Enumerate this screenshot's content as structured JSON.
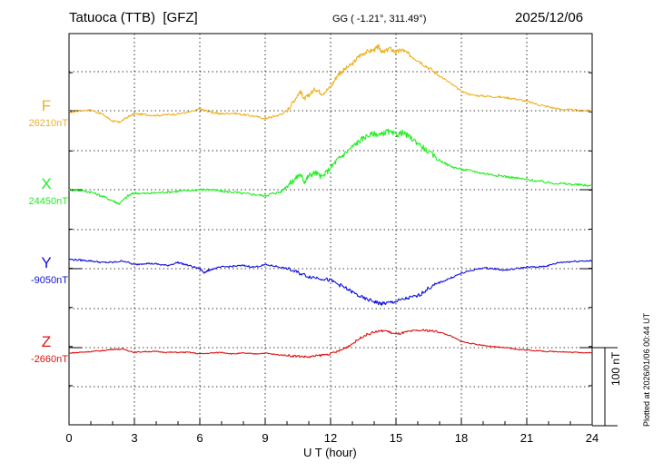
{
  "header": {
    "station": "Tatuoca (TTB)  [GFZ]",
    "coords": "GG ( -1.21°, 311.49°)",
    "date": "2025/12/06"
  },
  "footer": {
    "plotted": "Plotted at 2026/01/06 00:44 UT",
    "scale_label": "100 nT"
  },
  "chart_data": {
    "type": "line",
    "xlabel": "U T (hour)",
    "xlim": [
      0,
      24
    ],
    "xticks": [
      0,
      3,
      6,
      9,
      12,
      15,
      18,
      21,
      24
    ],
    "xtick_labels": [
      "0",
      "3",
      "6",
      "9",
      "12",
      "15",
      "18",
      "21",
      "24"
    ],
    "grid": true,
    "scale_bar_nT": 100,
    "series": [
      {
        "name": "F",
        "baseline": "26210nT",
        "baseline_value": 26210,
        "color": "#f0b020",
        "x": [
          0,
          0.5,
          1,
          1.5,
          2,
          2.3,
          2.7,
          3,
          3.5,
          4,
          4.5,
          5,
          5.5,
          6,
          6.3,
          6.7,
          7,
          7.5,
          8,
          8.5,
          9,
          9.3,
          9.7,
          10,
          10.3,
          10.6,
          10.8,
          11,
          11.3,
          11.6,
          12,
          12.3,
          12.6,
          13,
          13.3,
          13.6,
          14,
          14.2,
          14.4,
          14.7,
          15,
          15.3,
          15.6,
          16,
          16.5,
          17,
          17.5,
          18,
          18.5,
          19,
          19.5,
          20,
          20.5,
          21,
          21.5,
          22,
          22.5,
          23,
          23.5,
          24
        ],
        "values": [
          -2,
          0,
          1,
          -4,
          -13,
          -15,
          -8,
          -4,
          -5,
          -6,
          -5,
          -4,
          -2,
          2,
          0,
          -3,
          -4,
          -3,
          -5,
          -7,
          -10,
          -8,
          -5,
          0,
          12,
          25,
          15,
          20,
          28,
          22,
          30,
          45,
          52,
          60,
          70,
          75,
          78,
          82,
          74,
          80,
          75,
          78,
          72,
          65,
          55,
          45,
          35,
          25,
          20,
          19,
          18,
          17,
          15,
          12,
          8,
          5,
          2,
          1,
          0,
          0
        ]
      },
      {
        "name": "X",
        "baseline": "24450nT",
        "baseline_value": 24450,
        "color": "#22ee22",
        "x": [
          0,
          0.5,
          1,
          1.5,
          2,
          2.3,
          2.7,
          3,
          3.5,
          4,
          4.5,
          5,
          5.5,
          6,
          6.5,
          7,
          7.5,
          8,
          8.5,
          9,
          9.3,
          9.7,
          10,
          10.3,
          10.6,
          10.8,
          11,
          11.3,
          11.6,
          12,
          12.3,
          12.6,
          13,
          13.3,
          13.6,
          14,
          14.3,
          14.6,
          15,
          15.3,
          15.6,
          16,
          16.5,
          17,
          17.5,
          18,
          18.5,
          19,
          19.5,
          20,
          20.5,
          21,
          21.5,
          22,
          22.5,
          23,
          23.5,
          24
        ],
        "values": [
          0,
          -1,
          -3,
          -8,
          -14,
          -18,
          -8,
          -4,
          -5,
          -4,
          -3,
          -2,
          -1,
          0,
          0,
          -2,
          -3,
          -5,
          -6,
          -8,
          -5,
          -3,
          5,
          12,
          20,
          10,
          18,
          22,
          16,
          28,
          38,
          45,
          55,
          62,
          68,
          72,
          70,
          75,
          70,
          73,
          68,
          60,
          48,
          38,
          30,
          26,
          24,
          21,
          19,
          17,
          15,
          13,
          11,
          9,
          8,
          7,
          6,
          5
        ]
      },
      {
        "name": "Y",
        "baseline": "-9050nT",
        "baseline_value": -9050,
        "color": "#1010dd",
        "x": [
          0,
          0.5,
          1,
          1.5,
          2,
          2.5,
          3,
          3.5,
          4,
          4.5,
          5,
          5.5,
          6,
          6.2,
          6.5,
          7,
          7.5,
          8,
          8.5,
          9,
          9.5,
          10,
          10.5,
          11,
          11.5,
          12,
          12.5,
          13,
          13.5,
          14,
          14.3,
          14.6,
          15,
          15.5,
          16,
          16.5,
          17,
          17.5,
          18,
          18.5,
          19,
          19.5,
          20,
          20.5,
          21,
          21.5,
          22,
          22.5,
          23,
          23.5,
          24
        ],
        "values": [
          12,
          11,
          10,
          8,
          8,
          10,
          5,
          7,
          6,
          4,
          8,
          4,
          0,
          -5,
          -1,
          2,
          3,
          4,
          2,
          5,
          3,
          0,
          -5,
          -10,
          -12,
          -15,
          -22,
          -30,
          -38,
          -42,
          -45,
          -44,
          -42,
          -38,
          -35,
          -25,
          -18,
          -12,
          -6,
          -2,
          1,
          0,
          -2,
          0,
          2,
          2,
          4,
          8,
          9,
          10,
          10
        ]
      },
      {
        "name": "Z",
        "baseline": "-2660nT",
        "baseline_value": -2660,
        "color": "#e01010",
        "x": [
          0,
          0.5,
          1,
          1.5,
          2,
          2.5,
          3,
          3.5,
          4,
          4.5,
          5,
          5.5,
          6,
          6.5,
          7,
          7.5,
          8,
          8.5,
          9,
          9.5,
          10,
          10.5,
          11,
          11.5,
          12,
          12.5,
          13,
          13.5,
          14,
          14.5,
          15,
          15.5,
          16,
          16.5,
          17,
          17.5,
          18,
          18.5,
          19,
          19.5,
          20,
          20.5,
          21,
          21.5,
          22,
          22.5,
          23,
          23.5,
          24
        ],
        "values": [
          -7,
          -6,
          -5,
          -4,
          -2,
          -2,
          -6,
          -5,
          -5,
          -6,
          -6,
          -6,
          -8,
          -7,
          -6,
          -8,
          -7,
          -8,
          -7,
          -9,
          -10,
          -11,
          -12,
          -10,
          -8,
          -3,
          5,
          15,
          20,
          22,
          17,
          20,
          22,
          22,
          20,
          15,
          8,
          5,
          3,
          1,
          0,
          -2,
          -3,
          -4,
          -5,
          -5,
          -6,
          -6,
          -7
        ]
      }
    ]
  }
}
